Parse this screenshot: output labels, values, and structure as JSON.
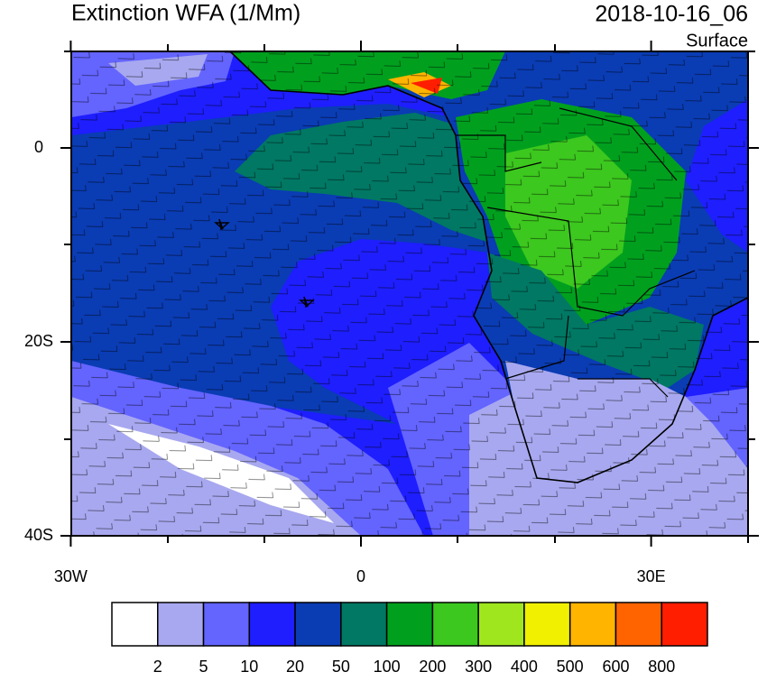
{
  "header": {
    "title": "Extinction WFA (1/Mm)",
    "date": "2018-10-16_06",
    "level": "Surface"
  },
  "map": {
    "lat_ticks": [
      0,
      {
        "value": -20,
        "label": "20S"
      },
      {
        "value": -40,
        "label": "40S"
      }
    ],
    "lon_ticks": [
      {
        "value": -30,
        "label": "30W"
      },
      0,
      {
        "value": 30,
        "label": "30E"
      }
    ]
  },
  "colorbar": {
    "colors": [
      "#ffffff",
      "#a8a8f0",
      "#6464ff",
      "#1e1eff",
      "#0a3cb4",
      "#007864",
      "#00a01e",
      "#3cc81e",
      "#a0e61e",
      "#f0f000",
      "#ffb400",
      "#ff6400",
      "#ff1e00"
    ],
    "labels": [
      2,
      5,
      10,
      20,
      50,
      100,
      200,
      300,
      400,
      500,
      600,
      800
    ]
  }
}
